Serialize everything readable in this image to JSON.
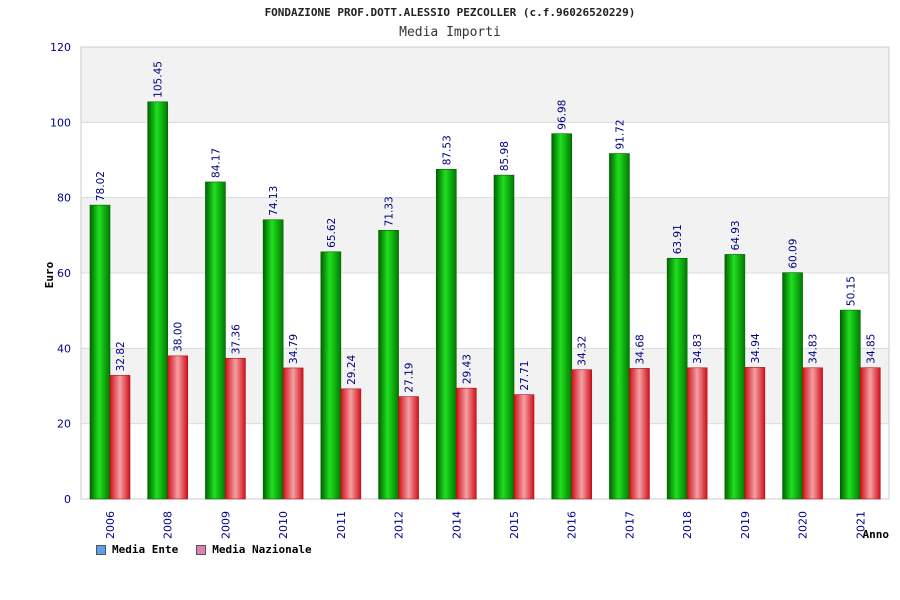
{
  "chart_data": {
    "type": "bar",
    "title": "FONDAZIONE PROF.DOTT.ALESSIO PEZCOLLER (c.f.96026520229)",
    "subtitle": "Media Importi",
    "xlabel": "Anno",
    "ylabel": "Euro",
    "ylim": [
      0,
      120
    ],
    "yticks": [
      0,
      20,
      40,
      60,
      80,
      100,
      120
    ],
    "categories": [
      "2006",
      "2008",
      "2009",
      "2010",
      "2011",
      "2012",
      "2014",
      "2015",
      "2016",
      "2017",
      "2018",
      "2019",
      "2020",
      "2021"
    ],
    "value_labels": {
      "ente": [
        "78.02",
        "105.45",
        "84.17",
        "74.13",
        "65.62",
        "71.33",
        "87.53",
        "85.98",
        "96.98",
        "91.72",
        "63.91",
        "64.93",
        "60.09",
        "50.15"
      ],
      "nazionale": [
        "32.82",
        "38.00",
        "37.36",
        "34.79",
        "29.24",
        "27.19",
        "29.43",
        "27.71",
        "34.32",
        "34.68",
        "34.83",
        "34.94",
        "34.83",
        "34.85"
      ]
    },
    "series": [
      {
        "name": "Media Ente",
        "color": "#00b000",
        "values": [
          78.02,
          105.45,
          84.17,
          74.13,
          65.62,
          71.33,
          87.53,
          85.98,
          96.98,
          91.72,
          63.91,
          64.93,
          60.09,
          50.15
        ]
      },
      {
        "name": "Media Nazionale",
        "color": "#e8202a",
        "values": [
          32.82,
          38.0,
          37.36,
          34.79,
          29.24,
          27.19,
          29.43,
          27.71,
          34.32,
          34.68,
          34.83,
          34.94,
          34.83,
          34.85
        ]
      }
    ],
    "legend": {
      "placement": "bottom-left",
      "items": [
        {
          "label": "Media Ente",
          "color": "#5aa0e8"
        },
        {
          "label": "Media Nazionale",
          "color": "#e080b0"
        }
      ]
    },
    "grid": true
  }
}
